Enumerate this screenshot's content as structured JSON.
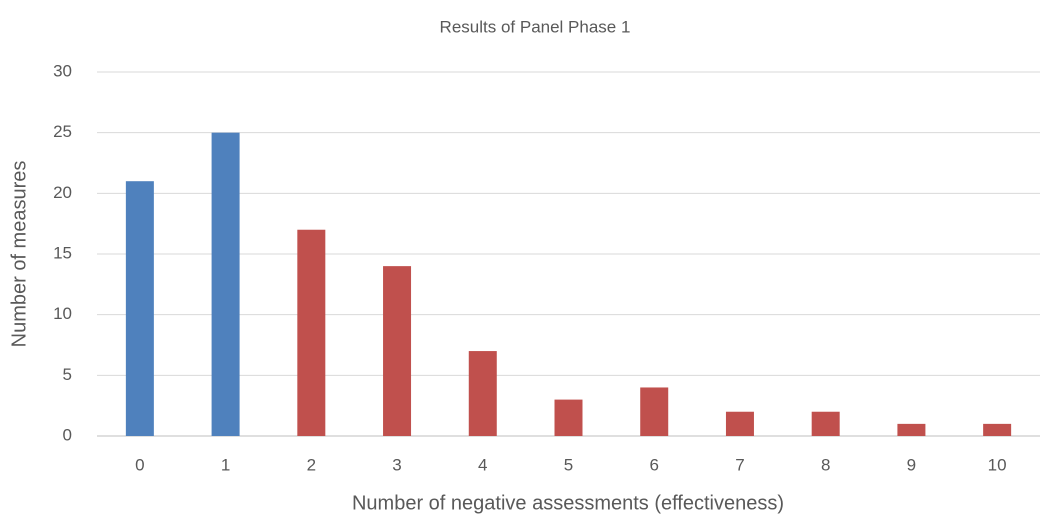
{
  "chart_data": {
    "type": "bar",
    "title": "Results of Panel Phase 1",
    "x_label": "Number of negative assessments (effectiveness)",
    "y_label": "Number of measures",
    "categories": [
      "0",
      "1",
      "2",
      "3",
      "4",
      "5",
      "6",
      "7",
      "8",
      "9",
      "10"
    ],
    "values": [
      21,
      25,
      17,
      14,
      7,
      3,
      4,
      2,
      2,
      1,
      1
    ],
    "colors": [
      "#4f81bd",
      "#4f81bd",
      "#c0504d",
      "#c0504d",
      "#c0504d",
      "#c0504d",
      "#c0504d",
      "#c0504d",
      "#c0504d",
      "#c0504d",
      "#c0504d"
    ],
    "ylim": [
      0,
      30
    ],
    "yticks": [
      0,
      5,
      10,
      15,
      20,
      25,
      30
    ],
    "grid": true
  }
}
